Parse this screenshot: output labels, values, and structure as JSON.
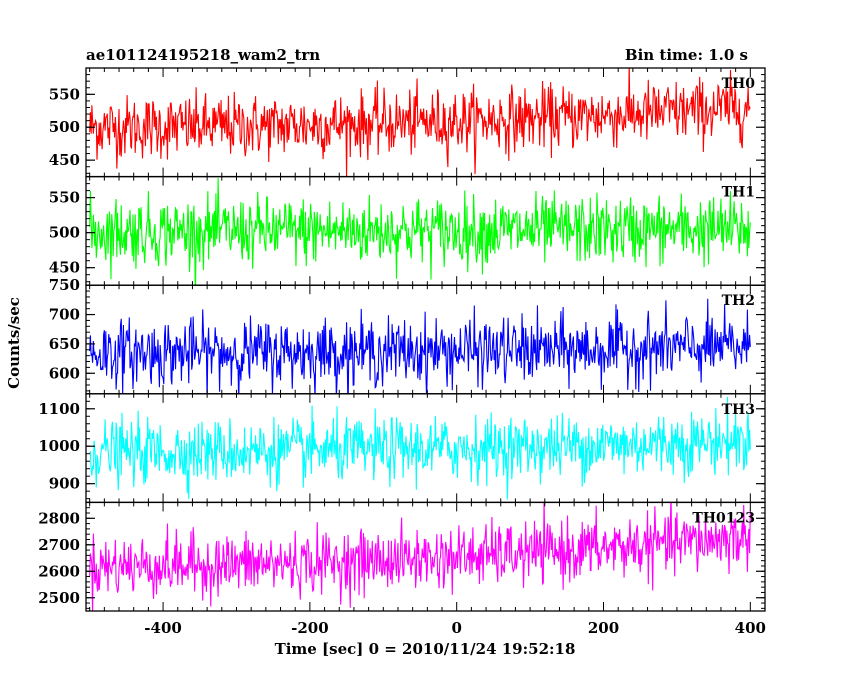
{
  "header": {
    "left_title": "ae101124195218_wam2_trn",
    "right_title": "Bin time: 1.0 s"
  },
  "axes": {
    "xlabel": "Time [sec] 0 = 2010/11/24 19:52:18",
    "ylabel": "Counts/sec"
  },
  "chart_data": {
    "type": "line",
    "title": "ae101124195218_wam2_trn",
    "subtitle": "Bin time: 1.0 s",
    "xlabel": "Time [sec] 0 = 2010/11/24 19:52:18",
    "ylabel": "Counts/sec",
    "xlim": [
      -505,
      420
    ],
    "xticks": [
      -400,
      -200,
      0,
      200,
      400
    ],
    "x_start": -500,
    "x_end": 400,
    "bin": 1.0,
    "grid": false,
    "panels": [
      {
        "name": "TH0",
        "color": "#ff0000",
        "ylim": [
          425,
          590
        ],
        "yticks": [
          450,
          500,
          550
        ],
        "mean_start": 500,
        "mean_end": 530,
        "noise_sigma": 24
      },
      {
        "name": "TH1",
        "color": "#00ff00",
        "ylim": [
          425,
          580
        ],
        "yticks": [
          450,
          500,
          550
        ],
        "mean_start": 502,
        "mean_end": 505,
        "noise_sigma": 24
      },
      {
        "name": "TH2",
        "color": "#0000ff",
        "ylim": [
          565,
          750
        ],
        "yticks": [
          600,
          650,
          700,
          750
        ],
        "mean_start": 635,
        "mean_end": 645,
        "noise_sigma": 28
      },
      {
        "name": "TH3",
        "color": "#00ffff",
        "ylim": [
          850,
          1140
        ],
        "yticks": [
          900,
          1000,
          1100
        ],
        "mean_start": 985,
        "mean_end": 1015,
        "noise_sigma": 42
      },
      {
        "name": "TH0123",
        "color": "#ff00ff",
        "ylim": [
          2450,
          2860
        ],
        "yticks": [
          2500,
          2600,
          2700,
          2800
        ],
        "mean_start": 2620,
        "mean_end": 2730,
        "noise_sigma": 58
      }
    ]
  }
}
